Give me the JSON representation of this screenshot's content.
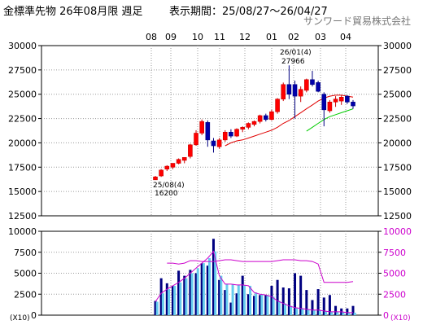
{
  "header": {
    "title": "金標準先物 26年08月限 週足",
    "period_label": "表示期間：25/08/27～26/04/27",
    "company": "サンワード貿易株式会社"
  },
  "chart_data": [
    {
      "type": "candlestick",
      "x_ticks": [
        "08",
        "09",
        "10",
        "11",
        "12",
        "01",
        "02",
        "03",
        "04"
      ],
      "ylim": [
        12500,
        30000
      ],
      "y_ticks": [
        12500,
        15000,
        17500,
        20000,
        22500,
        25000,
        27500,
        30000
      ],
      "grid": true,
      "candles": [
        {
          "o": 16200,
          "h": 16600,
          "l": 16200,
          "c": 16500
        },
        {
          "o": 16600,
          "h": 17300,
          "l": 16500,
          "c": 17200
        },
        {
          "o": 17300,
          "h": 17700,
          "l": 17100,
          "c": 17600
        },
        {
          "o": 17500,
          "h": 17900,
          "l": 17300,
          "c": 17900
        },
        {
          "o": 17900,
          "h": 18400,
          "l": 17800,
          "c": 18300
        },
        {
          "o": 18200,
          "h": 18500,
          "l": 17900,
          "c": 18500
        },
        {
          "o": 18600,
          "h": 19900,
          "l": 18400,
          "c": 19800
        },
        {
          "o": 19800,
          "h": 21300,
          "l": 19700,
          "c": 21000
        },
        {
          "o": 21000,
          "h": 22400,
          "l": 20800,
          "c": 22200
        },
        {
          "o": 22100,
          "h": 22300,
          "l": 19600,
          "c": 20300
        },
        {
          "o": 20200,
          "h": 20500,
          "l": 19000,
          "c": 19700
        },
        {
          "o": 19600,
          "h": 20500,
          "l": 19400,
          "c": 20300
        },
        {
          "o": 20300,
          "h": 21300,
          "l": 20100,
          "c": 21100
        },
        {
          "o": 21100,
          "h": 21400,
          "l": 20500,
          "c": 20700
        },
        {
          "o": 20700,
          "h": 21500,
          "l": 20600,
          "c": 21400
        },
        {
          "o": 21400,
          "h": 21700,
          "l": 21100,
          "c": 21600
        },
        {
          "o": 21600,
          "h": 22100,
          "l": 21400,
          "c": 22000
        },
        {
          "o": 21900,
          "h": 22300,
          "l": 21700,
          "c": 22200
        },
        {
          "o": 22200,
          "h": 22900,
          "l": 22000,
          "c": 22800
        },
        {
          "o": 22800,
          "h": 23000,
          "l": 22200,
          "c": 22400
        },
        {
          "o": 22400,
          "h": 23400,
          "l": 22300,
          "c": 23200
        },
        {
          "o": 23200,
          "h": 24600,
          "l": 23000,
          "c": 24500
        },
        {
          "o": 24500,
          "h": 26200,
          "l": 24300,
          "c": 26000
        },
        {
          "o": 26000,
          "h": 27966,
          "l": 24500,
          "c": 25000
        },
        {
          "o": 26000,
          "h": 26400,
          "l": 22500,
          "c": 24800
        },
        {
          "o": 24800,
          "h": 25800,
          "l": 24200,
          "c": 25500
        },
        {
          "o": 25400,
          "h": 26600,
          "l": 25200,
          "c": 26500
        },
        {
          "o": 26500,
          "h": 27400,
          "l": 25800,
          "c": 26000
        },
        {
          "o": 26200,
          "h": 26400,
          "l": 25200,
          "c": 25300
        },
        {
          "o": 25000,
          "h": 25200,
          "l": 21700,
          "c": 23400
        },
        {
          "o": 23300,
          "h": 24400,
          "l": 23100,
          "c": 24200
        },
        {
          "o": 24200,
          "h": 24800,
          "l": 23700,
          "c": 24500
        },
        {
          "o": 24300,
          "h": 24900,
          "l": 23900,
          "c": 24700
        },
        {
          "o": 24800,
          "h": 24900,
          "l": 24000,
          "c": 24200
        },
        {
          "o": 24200,
          "h": 24400,
          "l": 23500,
          "c": 23800
        }
      ],
      "ma_short": [
        null,
        null,
        null,
        null,
        null,
        null,
        null,
        null,
        null,
        null,
        null,
        null,
        19700,
        20000,
        20200,
        20300,
        20500,
        20700,
        20900,
        21100,
        21300,
        21600,
        22000,
        22300,
        22700,
        23100,
        23500,
        23900,
        24300,
        24600,
        24800,
        24900,
        24900,
        24800,
        24700
      ],
      "ma_long": [
        null,
        null,
        null,
        null,
        null,
        null,
        null,
        null,
        null,
        null,
        null,
        null,
        null,
        null,
        null,
        null,
        null,
        null,
        null,
        null,
        null,
        null,
        null,
        null,
        null,
        null,
        21200,
        21600,
        22000,
        22400,
        22700,
        22900,
        23100,
        23300,
        23500
      ],
      "annotations": [
        {
          "date_label": "26/01(4)",
          "value_label": "27966",
          "value": 27966
        },
        {
          "date_label": "25/08(4)",
          "value_label": "16200",
          "value": 16200
        }
      ]
    },
    {
      "type": "bar",
      "x_ticks": [
        "08",
        "09",
        "10",
        "11",
        "12",
        "01",
        "02",
        "03",
        "04"
      ],
      "ylim": [
        0,
        10000
      ],
      "y_ticks": [
        0,
        2500,
        5000,
        7500,
        10000
      ],
      "unit_left": "(X10)",
      "unit_right": "(X10)",
      "volume": [
        1700,
        4400,
        3800,
        3500,
        5300,
        4700,
        5400,
        5000,
        6200,
        5900,
        9100,
        4200,
        3000,
        1500,
        2600,
        4700,
        2500,
        2300,
        2400,
        2400,
        3500,
        4200,
        3300,
        3200,
        5000,
        4700,
        3000,
        1800,
        3100,
        2100,
        2400,
        1100,
        800,
        800,
        1100
      ],
      "open_interest": [
        1600,
        2600,
        3100,
        3500,
        3900,
        4400,
        5000,
        5600,
        6200,
        6800,
        7600,
        4700,
        3700,
        3700,
        3600,
        3600,
        3500,
        2700,
        2500,
        2400,
        2200,
        1700,
        1400,
        1100,
        900,
        800,
        700,
        600,
        600,
        500,
        400,
        400,
        400,
        300,
        300
      ],
      "volume_avg": [
        null,
        null,
        6200,
        6200,
        6100,
        6200,
        6500,
        6500,
        6400,
        6400,
        6400,
        6500,
        6600,
        6600,
        6500,
        6400,
        6400,
        6400,
        6400,
        6400,
        6400,
        6500,
        6600,
        6600,
        6600,
        6500,
        6500,
        6400,
        6100,
        3900,
        3900,
        3900,
        3900,
        3900,
        4000
      ]
    }
  ]
}
